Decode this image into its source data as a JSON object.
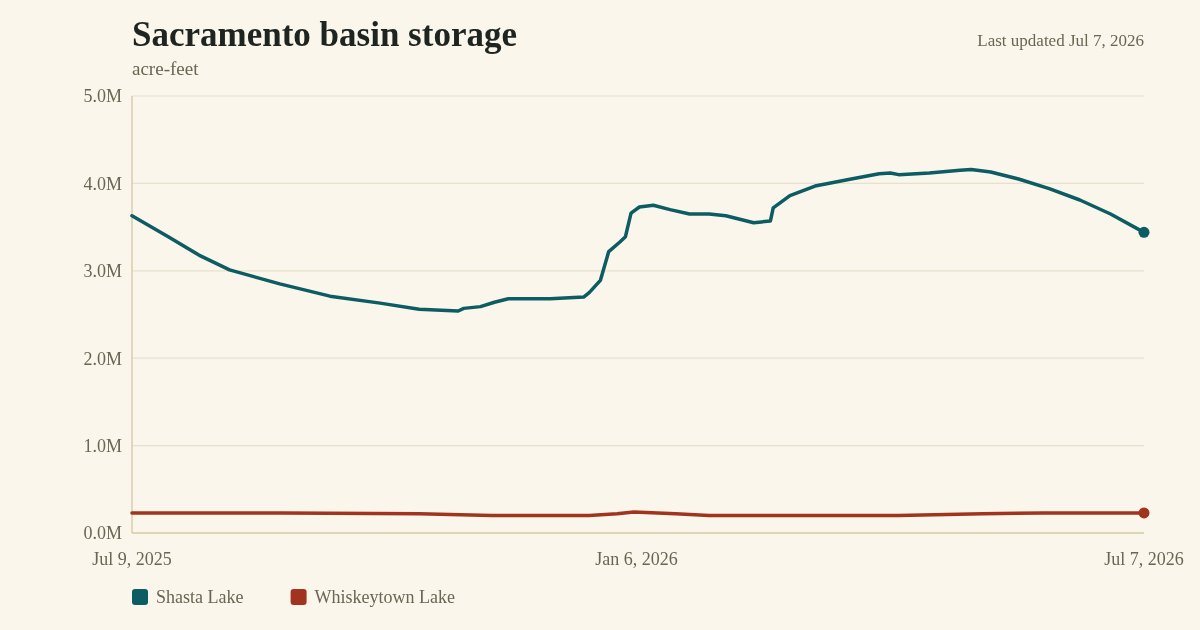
{
  "chart_data": {
    "type": "line",
    "title": "Sacramento basin storage",
    "subtitle": "acre-feet",
    "annotations": [
      "Last updated Jul 7, 2026"
    ],
    "x": [
      "2025-07-09",
      "2025-07-22",
      "2025-08-02",
      "2025-08-13",
      "2025-08-31",
      "2025-09-18",
      "2025-10-06",
      "2025-10-20",
      "2025-11-03",
      "2025-11-05",
      "2025-11-11",
      "2025-11-16",
      "2025-11-21",
      "2025-12-06",
      "2025-12-18",
      "2025-12-20",
      "2025-12-24",
      "2025-12-27",
      "2025-12-31",
      "2026-01-02",
      "2026-01-04",
      "2026-01-07",
      "2026-01-12",
      "2026-01-18",
      "2026-01-25",
      "2026-02-01",
      "2026-02-07",
      "2026-02-12",
      "2026-02-17",
      "2026-02-23",
      "2026-02-24",
      "2026-03-02",
      "2026-03-11",
      "2026-03-24",
      "2026-04-03",
      "2026-04-07",
      "2026-04-10",
      "2026-04-21",
      "2026-05-02",
      "2026-05-06",
      "2026-05-13",
      "2026-05-23",
      "2026-06-03",
      "2026-06-14",
      "2026-06-25",
      "2026-07-07"
    ],
    "series": [
      {
        "name": "Shasta Lake",
        "color": "#0d5c63",
        "values": [
          3.63,
          3.39,
          3.18,
          3.01,
          2.85,
          2.71,
          2.63,
          2.56,
          2.54,
          2.57,
          2.59,
          2.64,
          2.68,
          2.68,
          2.7,
          2.75,
          2.89,
          3.22,
          3.33,
          3.39,
          3.66,
          3.73,
          3.75,
          3.7,
          3.65,
          3.65,
          3.63,
          3.59,
          3.55,
          3.57,
          3.72,
          3.86,
          3.97,
          4.05,
          4.11,
          4.12,
          4.1,
          4.12,
          4.15,
          4.16,
          4.13,
          4.05,
          3.94,
          3.81,
          3.65,
          3.44
        ]
      },
      {
        "name": "Whiskeytown Lake",
        "color": "#a0341f",
        "x": [
          "2025-07-09",
          "2025-09-01",
          "2025-10-20",
          "2025-11-15",
          "2025-12-20",
          "2025-12-30",
          "2026-01-05",
          "2026-01-20",
          "2026-02-01",
          "2026-03-10",
          "2026-04-10",
          "2026-05-10",
          "2026-06-01",
          "2026-07-07"
        ],
        "values": [
          0.23,
          0.23,
          0.22,
          0.2,
          0.2,
          0.22,
          0.24,
          0.22,
          0.2,
          0.2,
          0.2,
          0.22,
          0.23,
          0.23
        ]
      }
    ],
    "xlim": [
      "2025-07-09",
      "2026-07-07"
    ],
    "xticks": [
      {
        "value": "2025-07-09",
        "label": "Jul 9, 2025"
      },
      {
        "value": "2026-01-06",
        "label": "Jan 6, 2026"
      },
      {
        "value": "2026-07-07",
        "label": "Jul 7, 2026"
      }
    ],
    "ylim": [
      0,
      5
    ],
    "yticks": [
      {
        "value": 0,
        "label": "0.0M"
      },
      {
        "value": 1,
        "label": "1.0M"
      },
      {
        "value": 2,
        "label": "2.0M"
      },
      {
        "value": 3,
        "label": "3.0M"
      },
      {
        "value": 4,
        "label": "4.0M"
      },
      {
        "value": 5,
        "label": "5.0M"
      }
    ],
    "grid": "y",
    "legend": "bottom left",
    "marker": "none",
    "line_style": "solid"
  }
}
